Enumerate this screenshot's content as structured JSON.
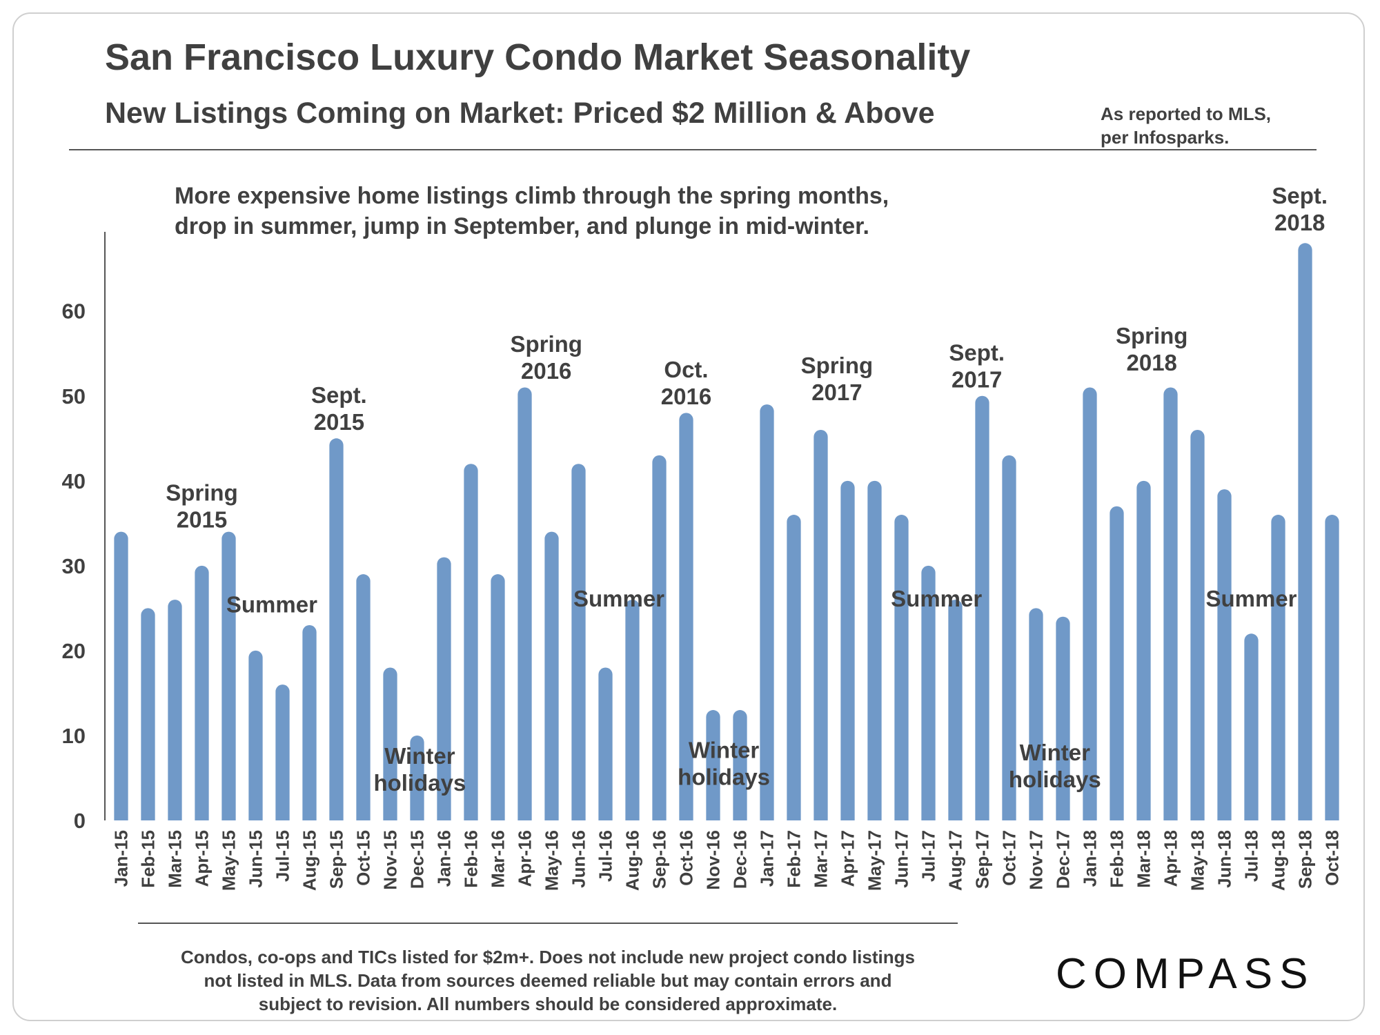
{
  "header": {
    "title": "San Francisco Luxury Condo Market Seasonality",
    "subtitle": "New Listings Coming on Market: Priced $2 Million & Above",
    "source_line1": "As reported to MLS,",
    "source_line2": "per Infosparks."
  },
  "note": {
    "line1": "More expensive home listings climb through the spring months,",
    "line2": "drop in summer, jump in September, and plunge in mid-winter."
  },
  "footer": {
    "line1": "Condos, co-ops and TICs listed for $2m+. Does not include new project condo listings",
    "line2": "not listed in MLS. Data from sources deemed reliable but may contain errors and",
    "line3": "subject to revision.  All numbers should be considered approximate.",
    "logo": "COMPASS"
  },
  "colors": {
    "bar": "#7099c8",
    "axis": "#555555",
    "text": "#404040"
  },
  "chart_data": {
    "type": "bar",
    "title": "San Francisco Luxury Condo Market Seasonality",
    "xlabel": "",
    "ylabel": "",
    "ylim": [
      0,
      69
    ],
    "yticks": [
      0,
      10,
      20,
      30,
      40,
      50,
      60
    ],
    "categories": [
      "Jan-15",
      "Feb-15",
      "Mar-15",
      "Apr-15",
      "May-15",
      "Jun-15",
      "Jul-15",
      "Aug-15",
      "Sep-15",
      "Oct-15",
      "Nov-15",
      "Dec-15",
      "Jan-16",
      "Feb-16",
      "Mar-16",
      "Apr-16",
      "May-16",
      "Jun-16",
      "Jul-16",
      "Aug-16",
      "Sep-16",
      "Oct-16",
      "Nov-16",
      "Dec-16",
      "Jan-17",
      "Feb-17",
      "Mar-17",
      "Apr-17",
      "May-17",
      "Jun-17",
      "Jul-17",
      "Aug-17",
      "Sep-17",
      "Oct-17",
      "Nov-17",
      "Dec-17",
      "Jan-18",
      "Feb-18",
      "Mar-18",
      "Apr-18",
      "May-18",
      "Jun-18",
      "Jul-18",
      "Aug-18",
      "Sep-18",
      "Oct-18"
    ],
    "values": [
      34,
      25,
      26,
      30,
      34,
      20,
      16,
      23,
      45,
      29,
      18,
      10,
      31,
      42,
      29,
      51,
      34,
      42,
      18,
      26,
      43,
      48,
      13,
      13,
      49,
      36,
      46,
      40,
      40,
      36,
      30,
      26,
      50,
      43,
      25,
      24,
      51,
      37,
      40,
      51,
      46,
      39,
      22,
      36,
      68,
      36
    ],
    "annotations": [
      {
        "lines": [
          "Spring",
          "2015"
        ],
        "index": 3,
        "value": 34.5
      },
      {
        "lines": [
          "Summer"
        ],
        "index": 5.6,
        "value": 24.5
      },
      {
        "lines": [
          "Sept.",
          "2015"
        ],
        "index": 8.1,
        "value": 46
      },
      {
        "lines": [
          "Winter",
          "holidays"
        ],
        "index": 11.1,
        "value": 3.5
      },
      {
        "lines": [
          "Spring",
          "2016"
        ],
        "index": 15.8,
        "value": 52
      },
      {
        "lines": [
          "Summer"
        ],
        "index": 18.5,
        "value": 25.2
      },
      {
        "lines": [
          "Oct.",
          "2016"
        ],
        "index": 21,
        "value": 49
      },
      {
        "lines": [
          "Winter",
          "holidays"
        ],
        "index": 22.4,
        "value": 4.2
      },
      {
        "lines": [
          "Spring",
          "2017"
        ],
        "index": 26.6,
        "value": 49.5
      },
      {
        "lines": [
          "Summer"
        ],
        "index": 30.3,
        "value": 25.2
      },
      {
        "lines": [
          "Sept.",
          "2017"
        ],
        "index": 31.8,
        "value": 51
      },
      {
        "lines": [
          "Winter",
          "holidays"
        ],
        "index": 34.7,
        "value": 3.9
      },
      {
        "lines": [
          "Spring",
          "2018"
        ],
        "index": 38.3,
        "value": 53
      },
      {
        "lines": [
          "Summer"
        ],
        "index": 42,
        "value": 25.2
      },
      {
        "lines": [
          "Sept.",
          "2018"
        ],
        "index": 43.8,
        "value": 69.5
      }
    ]
  }
}
